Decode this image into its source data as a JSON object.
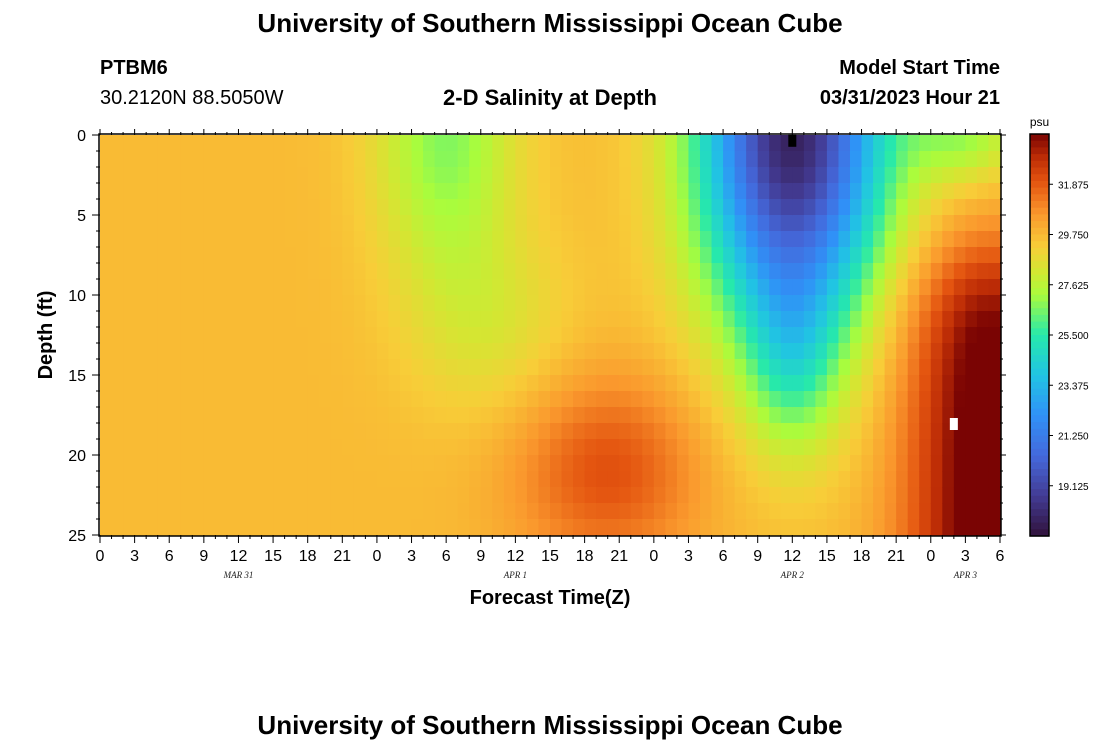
{
  "header": {
    "title": "University of Southern Mississippi Ocean Cube",
    "station": "PTBM6",
    "coords": "30.2120N  88.5050W",
    "subtitle": "2-D Salinity at Depth",
    "model_label": "Model Start Time",
    "model_time": "03/31/2023 Hour 21"
  },
  "footer": {
    "title": "University of Southern Mississippi Ocean Cube"
  },
  "chart_data": {
    "type": "heatmap",
    "title": "2-D Salinity at Depth",
    "xlabel": "Forecast Time(Z)",
    "ylabel": "Depth (ft)",
    "x_hours_range": [
      0,
      78
    ],
    "ylim": [
      0,
      25
    ],
    "x_ticks": [
      {
        "h": 0,
        "label": "0"
      },
      {
        "h": 3,
        "label": "3"
      },
      {
        "h": 6,
        "label": "6"
      },
      {
        "h": 9,
        "label": "9"
      },
      {
        "h": 12,
        "label": "12"
      },
      {
        "h": 15,
        "label": "15"
      },
      {
        "h": 18,
        "label": "18"
      },
      {
        "h": 21,
        "label": "21"
      },
      {
        "h": 24,
        "label": "0"
      },
      {
        "h": 27,
        "label": "3"
      },
      {
        "h": 30,
        "label": "6"
      },
      {
        "h": 33,
        "label": "9"
      },
      {
        "h": 36,
        "label": "12"
      },
      {
        "h": 39,
        "label": "15"
      },
      {
        "h": 42,
        "label": "18"
      },
      {
        "h": 45,
        "label": "21"
      },
      {
        "h": 48,
        "label": "0"
      },
      {
        "h": 51,
        "label": "3"
      },
      {
        "h": 54,
        "label": "6"
      },
      {
        "h": 57,
        "label": "9"
      },
      {
        "h": 60,
        "label": "12"
      },
      {
        "h": 63,
        "label": "15"
      },
      {
        "h": 66,
        "label": "18"
      },
      {
        "h": 69,
        "label": "21"
      },
      {
        "h": 72,
        "label": "0"
      },
      {
        "h": 75,
        "label": "3"
      },
      {
        "h": 78,
        "label": "6"
      }
    ],
    "date_labels": [
      {
        "h": 12,
        "label": "MAR 31"
      },
      {
        "h": 36,
        "label": "APR 1"
      },
      {
        "h": 60,
        "label": "APR 2"
      },
      {
        "h": 75,
        "label": "APR 3"
      }
    ],
    "y_ticks": [
      0,
      5,
      10,
      15,
      20,
      25
    ],
    "colorbar": {
      "unit": "psu",
      "min": 17.0,
      "max": 34.0,
      "labels": [
        "31.875",
        "29.750",
        "27.625",
        "25.500",
        "23.375",
        "21.250",
        "19.125"
      ]
    },
    "markers": [
      {
        "hour": 60,
        "depth": 0.3,
        "color": "#000000",
        "name": "surface-marker"
      },
      {
        "hour": 74,
        "depth": 18,
        "color": "#ffffff",
        "name": "white-marker"
      }
    ],
    "features": [
      {
        "name": "ambient",
        "salinity": 29.7
      },
      {
        "name": "fresh-lens-day1",
        "hour": 30,
        "depth": 3,
        "salinity": 26.8
      },
      {
        "name": "salty-tongue-apr1",
        "hour": 43,
        "depth": 21,
        "salinity": 31.8
      },
      {
        "name": "fresh-plume-apr2",
        "hour": 60,
        "depth": 0,
        "salinity": 18.5
      },
      {
        "name": "salty-core-apr3",
        "hour": 76,
        "depth": 22,
        "salinity": 34.0
      }
    ]
  }
}
